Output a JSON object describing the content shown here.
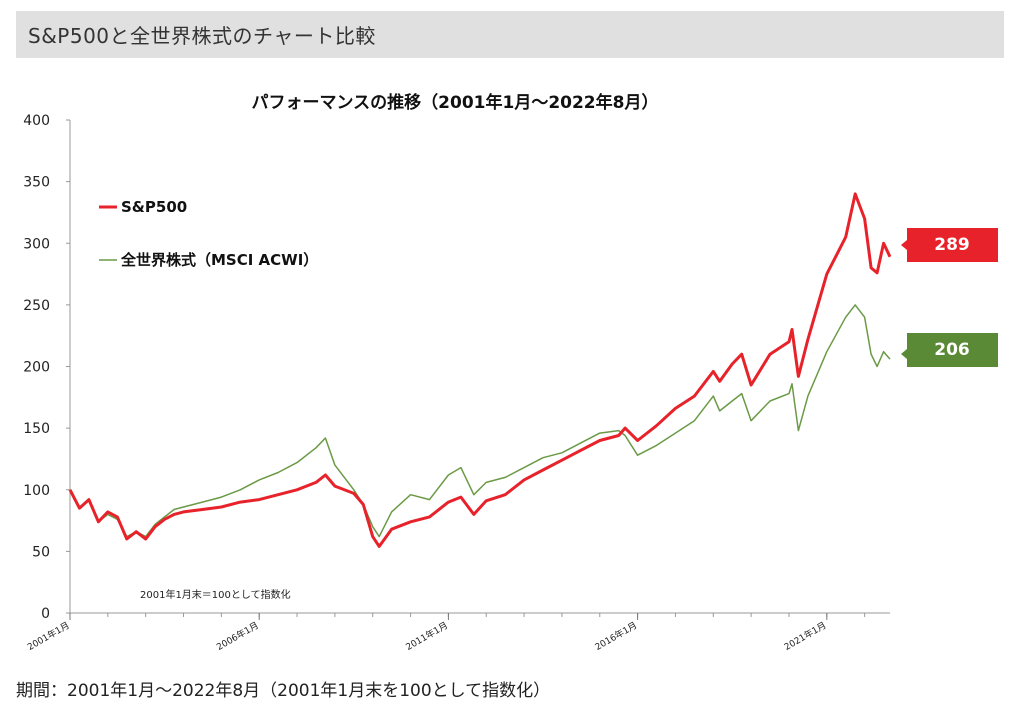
{
  "header": {
    "title": "S&P500と全世界株式のチャート比較"
  },
  "caption": "期間：2001年1月～2022年8月（2001年1月末を100として指数化）",
  "colors": {
    "sp500": "#e8222a",
    "acwi": "#6a9a46",
    "sp500_tag": "#e8222a",
    "acwi_tag": "#5a8a36"
  },
  "chart_data": {
    "type": "line",
    "title": "パフォーマンスの推移（2001年1月～2022年8月）",
    "note": "2001年1月末＝100として指数化",
    "xlabel": "",
    "ylabel": "",
    "ylim": [
      0,
      400
    ],
    "yticks": [
      0,
      50,
      100,
      150,
      200,
      250,
      300,
      350,
      400
    ],
    "xlim": [
      2001.0,
      2022.67
    ],
    "xticks": [
      {
        "x": 2001.0,
        "label": "2001年1月"
      },
      {
        "x": 2006.0,
        "label": "2006年1月"
      },
      {
        "x": 2011.0,
        "label": "2011年1月"
      },
      {
        "x": 2016.0,
        "label": "2016年1月"
      },
      {
        "x": 2021.0,
        "label": "2021年1月"
      }
    ],
    "grid": false,
    "legend": "top-left",
    "series": [
      {
        "name": "S&P500",
        "end_label": "289",
        "x": [
          2001.0,
          2001.25,
          2001.5,
          2001.75,
          2002.0,
          2002.25,
          2002.5,
          2002.75,
          2003.0,
          2003.25,
          2003.5,
          2003.75,
          2004.0,
          2004.5,
          2005.0,
          2005.5,
          2006.0,
          2006.5,
          2007.0,
          2007.5,
          2007.75,
          2008.0,
          2008.5,
          2008.75,
          2009.0,
          2009.17,
          2009.5,
          2010.0,
          2010.5,
          2011.0,
          2011.33,
          2011.67,
          2012.0,
          2012.5,
          2013.0,
          2013.5,
          2014.0,
          2014.5,
          2015.0,
          2015.5,
          2015.67,
          2016.0,
          2016.5,
          2017.0,
          2017.5,
          2018.0,
          2018.17,
          2018.5,
          2018.75,
          2019.0,
          2019.5,
          2020.0,
          2020.08,
          2020.25,
          2020.5,
          2021.0,
          2021.5,
          2021.75,
          2022.0,
          2022.17,
          2022.33,
          2022.5,
          2022.67
        ],
        "y": [
          100,
          85,
          92,
          74,
          82,
          78,
          60,
          66,
          60,
          70,
          76,
          80,
          82,
          84,
          86,
          90,
          92,
          96,
          100,
          106,
          112,
          103,
          97,
          88,
          62,
          54,
          68,
          74,
          78,
          90,
          94,
          80,
          91,
          96,
          108,
          116,
          124,
          132,
          140,
          144,
          150,
          140,
          152,
          166,
          176,
          196,
          188,
          202,
          210,
          185,
          210,
          220,
          230,
          192,
          222,
          275,
          305,
          340,
          320,
          280,
          276,
          300,
          289
        ]
      },
      {
        "name": "全世界株式（MSCI ACWI）",
        "end_label": "206",
        "x": [
          2001.0,
          2001.25,
          2001.5,
          2001.75,
          2002.0,
          2002.25,
          2002.5,
          2002.75,
          2003.0,
          2003.25,
          2003.5,
          2003.75,
          2004.0,
          2004.5,
          2005.0,
          2005.5,
          2006.0,
          2006.5,
          2007.0,
          2007.5,
          2007.75,
          2008.0,
          2008.5,
          2008.75,
          2009.0,
          2009.17,
          2009.5,
          2010.0,
          2010.5,
          2011.0,
          2011.33,
          2011.67,
          2012.0,
          2012.5,
          2013.0,
          2013.5,
          2014.0,
          2014.5,
          2015.0,
          2015.5,
          2015.67,
          2016.0,
          2016.5,
          2017.0,
          2017.5,
          2018.0,
          2018.17,
          2018.5,
          2018.75,
          2019.0,
          2019.5,
          2020.0,
          2020.08,
          2020.25,
          2020.5,
          2021.0,
          2021.5,
          2021.75,
          2022.0,
          2022.17,
          2022.33,
          2022.5,
          2022.67
        ],
        "y": [
          100,
          86,
          92,
          74,
          80,
          76,
          62,
          66,
          62,
          72,
          78,
          84,
          86,
          90,
          94,
          100,
          108,
          114,
          122,
          134,
          142,
          120,
          100,
          88,
          70,
          62,
          82,
          96,
          92,
          112,
          118,
          96,
          106,
          110,
          118,
          126,
          130,
          138,
          146,
          148,
          144,
          128,
          136,
          146,
          156,
          176,
          164,
          172,
          178,
          156,
          172,
          178,
          186,
          148,
          176,
          212,
          240,
          250,
          240,
          210,
          200,
          212,
          206
        ]
      }
    ]
  }
}
